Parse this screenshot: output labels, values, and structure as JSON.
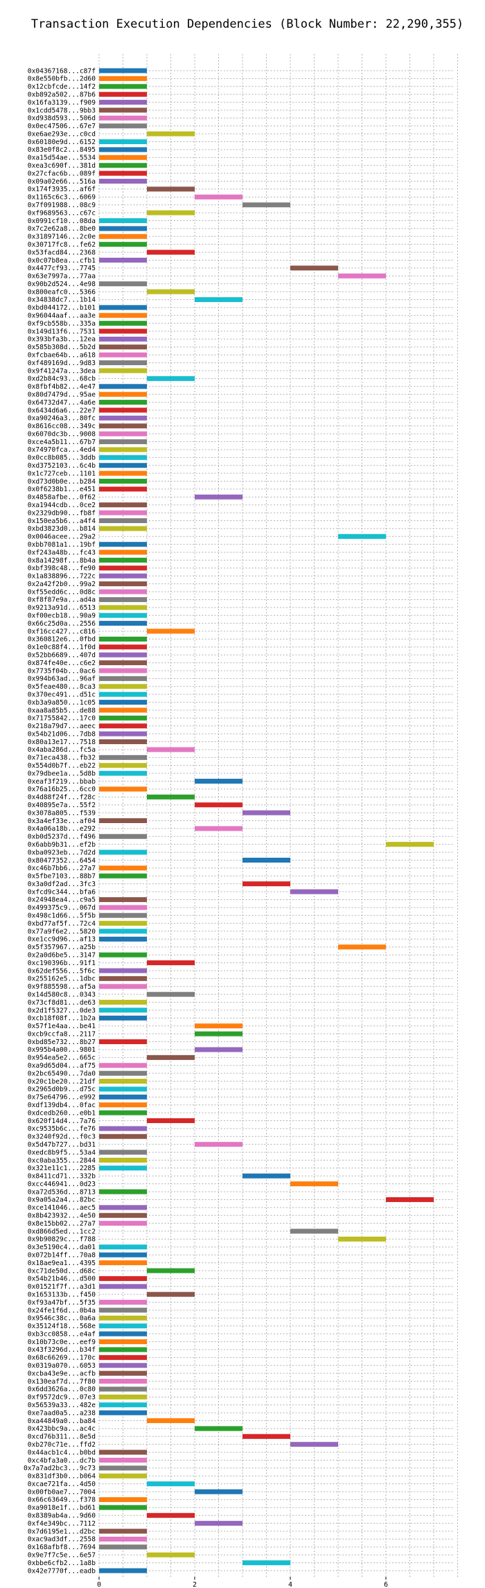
{
  "chart_data": {
    "type": "gantt",
    "title": "Transaction Execution Dependencies (Block Number: 22,290,355)",
    "xlabel": "",
    "ylabel": "",
    "xlim": [
      0,
      7.5
    ],
    "x_ticks": [
      0,
      2,
      4,
      6
    ],
    "grid": true,
    "palette": [
      "#1f77b4",
      "#ff7f0e",
      "#2ca02c",
      "#d62728",
      "#9467bd",
      "#8c564b",
      "#e377c2",
      "#7f7f7f",
      "#bcbd22",
      "#17becf"
    ],
    "tasks": [
      {
        "label": "0x04367168...c87f",
        "start": 0,
        "end": 1
      },
      {
        "label": "0x8e550bfb...2d60",
        "start": 0,
        "end": 1
      },
      {
        "label": "0x12cbfcde...14f2",
        "start": 0,
        "end": 1
      },
      {
        "label": "0xb892a502...87b6",
        "start": 0,
        "end": 1
      },
      {
        "label": "0x16fa3139...f909",
        "start": 0,
        "end": 1
      },
      {
        "label": "0x1cdd5478...9bb3",
        "start": 0,
        "end": 1
      },
      {
        "label": "0xd938d593...506d",
        "start": 0,
        "end": 1
      },
      {
        "label": "0x0ec47506...67e7",
        "start": 0,
        "end": 1
      },
      {
        "label": "0xe6ae293e...c0cd",
        "start": 1,
        "end": 2
      },
      {
        "label": "0x60180e9d...6152",
        "start": 0,
        "end": 1
      },
      {
        "label": "0x83e0f8c2...8495",
        "start": 0,
        "end": 1
      },
      {
        "label": "0xa15d54ae...5534",
        "start": 0,
        "end": 1
      },
      {
        "label": "0xea3c690f...381d",
        "start": 0,
        "end": 1
      },
      {
        "label": "0x27cfac6b...089f",
        "start": 0,
        "end": 1
      },
      {
        "label": "0x09a02e66...516a",
        "start": 0,
        "end": 1
      },
      {
        "label": "0x174f3935...af6f",
        "start": 1,
        "end": 2
      },
      {
        "label": "0x1165c6c3...6069",
        "start": 2,
        "end": 3
      },
      {
        "label": "0x7f091988...08c9",
        "start": 3,
        "end": 4
      },
      {
        "label": "0xf9689563...c67c",
        "start": 1,
        "end": 2
      },
      {
        "label": "0x0991cf10...08da",
        "start": 0,
        "end": 1
      },
      {
        "label": "0x7c2e62a8...8be0",
        "start": 0,
        "end": 1
      },
      {
        "label": "0x31897146...2c0e",
        "start": 0,
        "end": 1
      },
      {
        "label": "0x30717fc8...fe62",
        "start": 0,
        "end": 1
      },
      {
        "label": "0x53facd84...2368",
        "start": 1,
        "end": 2
      },
      {
        "label": "0x0c07b8ea...cfb1",
        "start": 0,
        "end": 1
      },
      {
        "label": "0x4477cf93...7745",
        "start": 4,
        "end": 5
      },
      {
        "label": "0x63e7997a...77aa",
        "start": 5,
        "end": 6
      },
      {
        "label": "0x90b2d524...4e98",
        "start": 0,
        "end": 1
      },
      {
        "label": "0x800eafc0...5366",
        "start": 1,
        "end": 2
      },
      {
        "label": "0x34838dc7...1b14",
        "start": 2,
        "end": 3
      },
      {
        "label": "0xbd044172...b101",
        "start": 0,
        "end": 1
      },
      {
        "label": "0x96044aaf...aa3e",
        "start": 0,
        "end": 1
      },
      {
        "label": "0xf9cb558b...335a",
        "start": 0,
        "end": 1
      },
      {
        "label": "0x149d13f6...7531",
        "start": 0,
        "end": 1
      },
      {
        "label": "0x393bfa3b...12ea",
        "start": 0,
        "end": 1
      },
      {
        "label": "0x585b308d...5b2d",
        "start": 0,
        "end": 1
      },
      {
        "label": "0xfcbae64b...a618",
        "start": 0,
        "end": 1
      },
      {
        "label": "0xf489169d...9d83",
        "start": 0,
        "end": 1
      },
      {
        "label": "0x9f41247a...3dea",
        "start": 0,
        "end": 1
      },
      {
        "label": "0xd2b84c93...68cb",
        "start": 1,
        "end": 2
      },
      {
        "label": "0x8fbf4b82...4e47",
        "start": 0,
        "end": 1
      },
      {
        "label": "0x80d7479d...95ae",
        "start": 0,
        "end": 1
      },
      {
        "label": "0x64732d47...4a6e",
        "start": 0,
        "end": 1
      },
      {
        "label": "0x6434d6a6...22e7",
        "start": 0,
        "end": 1
      },
      {
        "label": "0xa90246a3...80fc",
        "start": 0,
        "end": 1
      },
      {
        "label": "0x8616cc08...349c",
        "start": 0,
        "end": 1
      },
      {
        "label": "0x6070dc3b...9008",
        "start": 0,
        "end": 1
      },
      {
        "label": "0xce4a5b11...67b7",
        "start": 0,
        "end": 1
      },
      {
        "label": "0x74970fca...4ed4",
        "start": 0,
        "end": 1
      },
      {
        "label": "0x0cc8b085...3ddb",
        "start": 0,
        "end": 1
      },
      {
        "label": "0xd3752103...6c4b",
        "start": 0,
        "end": 1
      },
      {
        "label": "0x1c727ceb...1101",
        "start": 0,
        "end": 1
      },
      {
        "label": "0xd73d0b0e...b284",
        "start": 0,
        "end": 1
      },
      {
        "label": "0x0f6238b1...e451",
        "start": 0,
        "end": 1
      },
      {
        "label": "0x4858afbe...0f62",
        "start": 2,
        "end": 3
      },
      {
        "label": "0xa1944cdb...0ce2",
        "start": 0,
        "end": 1
      },
      {
        "label": "0x2329db90...fb8f",
        "start": 0,
        "end": 1
      },
      {
        "label": "0x150ea5b6...a4f4",
        "start": 0,
        "end": 1
      },
      {
        "label": "0xbd3823d0...b814",
        "start": 0,
        "end": 1
      },
      {
        "label": "0x0046acee...29a2",
        "start": 5,
        "end": 6
      },
      {
        "label": "0xbb7081a1...19bf",
        "start": 0,
        "end": 1
      },
      {
        "label": "0xf243a48b...fc43",
        "start": 0,
        "end": 1
      },
      {
        "label": "0x8a14298f...8b4a",
        "start": 0,
        "end": 1
      },
      {
        "label": "0xbf398c48...fe90",
        "start": 0,
        "end": 1
      },
      {
        "label": "0x1a838896...722c",
        "start": 0,
        "end": 1
      },
      {
        "label": "0x2a42f2b0...99a2",
        "start": 0,
        "end": 1
      },
      {
        "label": "0xf55edd6c...0d8c",
        "start": 0,
        "end": 1
      },
      {
        "label": "0xf8f87e9a...ad4a",
        "start": 0,
        "end": 1
      },
      {
        "label": "0x9213a91d...6513",
        "start": 0,
        "end": 1
      },
      {
        "label": "0xf00ecb18...90a9",
        "start": 0,
        "end": 1
      },
      {
        "label": "0x66c25d0a...2556",
        "start": 0,
        "end": 1
      },
      {
        "label": "0xf16cc427...c816",
        "start": 1,
        "end": 2
      },
      {
        "label": "0x360812e6...0fbd",
        "start": 0,
        "end": 1
      },
      {
        "label": "0x1e0c88f4...1f0d",
        "start": 0,
        "end": 1
      },
      {
        "label": "0x52bb6689...407d",
        "start": 0,
        "end": 1
      },
      {
        "label": "0x874fe40e...c6e2",
        "start": 0,
        "end": 1
      },
      {
        "label": "0x7735f04b...0ac6",
        "start": 0,
        "end": 1
      },
      {
        "label": "0x994b63ad...96af",
        "start": 0,
        "end": 1
      },
      {
        "label": "0x5feae480...8ca3",
        "start": 0,
        "end": 1
      },
      {
        "label": "0x370ec491...d51c",
        "start": 0,
        "end": 1
      },
      {
        "label": "0xb3a9a850...1c05",
        "start": 0,
        "end": 1
      },
      {
        "label": "0xaa8a85b5...de88",
        "start": 0,
        "end": 1
      },
      {
        "label": "0x71755842...17c0",
        "start": 0,
        "end": 1
      },
      {
        "label": "0x218a79d7...aeec",
        "start": 0,
        "end": 1
      },
      {
        "label": "0x54b21d06...7db8",
        "start": 0,
        "end": 1
      },
      {
        "label": "0x80a13e17...7518",
        "start": 0,
        "end": 1
      },
      {
        "label": "0x4aba286d...fc5a",
        "start": 1,
        "end": 2
      },
      {
        "label": "0x71eca438...fb32",
        "start": 0,
        "end": 1
      },
      {
        "label": "0x554d0b7f...eb22",
        "start": 0,
        "end": 1
      },
      {
        "label": "0x79dbee1a...5d8b",
        "start": 0,
        "end": 1
      },
      {
        "label": "0xeaf3f219...bbab",
        "start": 2,
        "end": 3
      },
      {
        "label": "0x76a16b25...6cc0",
        "start": 0,
        "end": 1
      },
      {
        "label": "0x4d88f24f...f28c",
        "start": 1,
        "end": 2
      },
      {
        "label": "0x40895e7a...55f2",
        "start": 2,
        "end": 3
      },
      {
        "label": "0x3078a805...f539",
        "start": 3,
        "end": 4
      },
      {
        "label": "0x3a4ef33e...af04",
        "start": 0,
        "end": 1
      },
      {
        "label": "0x4a06a18b...e292",
        "start": 2,
        "end": 3
      },
      {
        "label": "0xb0d5237d...f496",
        "start": 0,
        "end": 1
      },
      {
        "label": "0x6abb9b31...ef2b",
        "start": 6,
        "end": 7
      },
      {
        "label": "0xba0923eb...7d2d",
        "start": 0,
        "end": 1
      },
      {
        "label": "0x80477352...6454",
        "start": 3,
        "end": 4
      },
      {
        "label": "0xc46b7bb6...27a7",
        "start": 0,
        "end": 1
      },
      {
        "label": "0x5fbe7103...88b7",
        "start": 0,
        "end": 1
      },
      {
        "label": "0x3a0df2ad...3fc3",
        "start": 3,
        "end": 4
      },
      {
        "label": "0xfcd9c344...bfa6",
        "start": 4,
        "end": 5
      },
      {
        "label": "0x24948ea4...c9a5",
        "start": 0,
        "end": 1
      },
      {
        "label": "0x499375c9...067d",
        "start": 0,
        "end": 1
      },
      {
        "label": "0x498c1d66...5f5b",
        "start": 0,
        "end": 1
      },
      {
        "label": "0xbd77af5f...72c4",
        "start": 0,
        "end": 1
      },
      {
        "label": "0x77a9f6e2...5820",
        "start": 0,
        "end": 1
      },
      {
        "label": "0xe1cc9d96...af13",
        "start": 0,
        "end": 1
      },
      {
        "label": "0x5f357967...a25b",
        "start": 5,
        "end": 6
      },
      {
        "label": "0x2a0d6be5...3147",
        "start": 0,
        "end": 1
      },
      {
        "label": "0xc190396b...91f1",
        "start": 1,
        "end": 2
      },
      {
        "label": "0x62def556...5f6c",
        "start": 0,
        "end": 1
      },
      {
        "label": "0x255162e5...1dbc",
        "start": 0,
        "end": 1
      },
      {
        "label": "0x9f885598...af5a",
        "start": 0,
        "end": 1
      },
      {
        "label": "0x14d580c8...0343",
        "start": 1,
        "end": 2
      },
      {
        "label": "0x73cf8d81...de63",
        "start": 0,
        "end": 1
      },
      {
        "label": "0x2d1f5327...0de3",
        "start": 0,
        "end": 1
      },
      {
        "label": "0xcb18f08f...1b2a",
        "start": 0,
        "end": 1
      },
      {
        "label": "0x57f1e4aa...be41",
        "start": 2,
        "end": 3
      },
      {
        "label": "0xcb9ccfa8...2117",
        "start": 2,
        "end": 3
      },
      {
        "label": "0xbd85e732...8b27",
        "start": 0,
        "end": 1
      },
      {
        "label": "0x995b4a00...9801",
        "start": 2,
        "end": 3
      },
      {
        "label": "0x954ea5e2...665c",
        "start": 1,
        "end": 2
      },
      {
        "label": "0xa9d65d04...af75",
        "start": 0,
        "end": 1
      },
      {
        "label": "0x2bc65490...7da0",
        "start": 0,
        "end": 1
      },
      {
        "label": "0x20c1be20...21df",
        "start": 0,
        "end": 1
      },
      {
        "label": "0x2965d0b9...d75c",
        "start": 0,
        "end": 1
      },
      {
        "label": "0x75e64796...e992",
        "start": 0,
        "end": 1
      },
      {
        "label": "0xdf139db4...0fac",
        "start": 0,
        "end": 1
      },
      {
        "label": "0xdcedb260...e0b1",
        "start": 0,
        "end": 1
      },
      {
        "label": "0x620f14d4...7a76",
        "start": 1,
        "end": 2
      },
      {
        "label": "0xc9535b6c...fe76",
        "start": 0,
        "end": 1
      },
      {
        "label": "0x3240f92d...f0c3",
        "start": 0,
        "end": 1
      },
      {
        "label": "0x5d47b727...bd31",
        "start": 2,
        "end": 3
      },
      {
        "label": "0xedc8b9f5...53a4",
        "start": 0,
        "end": 1
      },
      {
        "label": "0xc0aba355...2844",
        "start": 0,
        "end": 1
      },
      {
        "label": "0x321e11c1...2285",
        "start": 0,
        "end": 1
      },
      {
        "label": "0x8411cd71...332b",
        "start": 3,
        "end": 4
      },
      {
        "label": "0xcc446941...0d23",
        "start": 4,
        "end": 5
      },
      {
        "label": "0xa72d536d...8713",
        "start": 0,
        "end": 1
      },
      {
        "label": "0x9a05a2a4...82bc",
        "start": 6,
        "end": 7
      },
      {
        "label": "0xce141046...aec5",
        "start": 0,
        "end": 1
      },
      {
        "label": "0x8b423932...4e50",
        "start": 0,
        "end": 1
      },
      {
        "label": "0x8e15bb02...27a7",
        "start": 0,
        "end": 1
      },
      {
        "label": "0xd866d5ed...1cc2",
        "start": 4,
        "end": 5
      },
      {
        "label": "0x9b90829c...f788",
        "start": 5,
        "end": 6
      },
      {
        "label": "0x3e5190c4...da01",
        "start": 0,
        "end": 1
      },
      {
        "label": "0x072b14ff...70a8",
        "start": 0,
        "end": 1
      },
      {
        "label": "0x18ae9ea1...4395",
        "start": 0,
        "end": 1
      },
      {
        "label": "0xc71de50d...d68c",
        "start": 1,
        "end": 2
      },
      {
        "label": "0x54b21b46...d500",
        "start": 0,
        "end": 1
      },
      {
        "label": "0x01521f7f...a3d1",
        "start": 0,
        "end": 1
      },
      {
        "label": "0x1653133b...f450",
        "start": 1,
        "end": 2
      },
      {
        "label": "0xf93a47bf...5f35",
        "start": 0,
        "end": 1
      },
      {
        "label": "0x24fe1f6d...0b4a",
        "start": 0,
        "end": 1
      },
      {
        "label": "0x9546c38c...0a6a",
        "start": 0,
        "end": 1
      },
      {
        "label": "0x35124f18...568e",
        "start": 0,
        "end": 1
      },
      {
        "label": "0xb3cc0858...e4af",
        "start": 0,
        "end": 1
      },
      {
        "label": "0x10b73c0e...eef9",
        "start": 0,
        "end": 1
      },
      {
        "label": "0x43f3296d...b34f",
        "start": 0,
        "end": 1
      },
      {
        "label": "0x68c66269...170c",
        "start": 0,
        "end": 1
      },
      {
        "label": "0x0319a070...6053",
        "start": 0,
        "end": 1
      },
      {
        "label": "0xcba43e9e...acfb",
        "start": 0,
        "end": 1
      },
      {
        "label": "0x130eaf7d...7f80",
        "start": 0,
        "end": 1
      },
      {
        "label": "0x6dd3626a...0c80",
        "start": 0,
        "end": 1
      },
      {
        "label": "0xf9572dc9...07e3",
        "start": 0,
        "end": 1
      },
      {
        "label": "0x56539a33...482e",
        "start": 0,
        "end": 1
      },
      {
        "label": "0xe7aad0a5...a238",
        "start": 0,
        "end": 1
      },
      {
        "label": "0xa44849a0...ba84",
        "start": 1,
        "end": 2
      },
      {
        "label": "0x423bbc9a...ac4c",
        "start": 2,
        "end": 3
      },
      {
        "label": "0xcd76b311...8e5d",
        "start": 3,
        "end": 4
      },
      {
        "label": "0xb270c71e...ffd2",
        "start": 4,
        "end": 5
      },
      {
        "label": "0x44acb1c4...b0bd",
        "start": 0,
        "end": 1
      },
      {
        "label": "0xc4bfa3a0...dc7b",
        "start": 0,
        "end": 1
      },
      {
        "label": "0x7a7ad2bc3...9c73",
        "start": 0,
        "end": 1
      },
      {
        "label": "0x831df3b0...b064",
        "start": 0,
        "end": 1
      },
      {
        "label": "0xcae721fa...4d50",
        "start": 1,
        "end": 2
      },
      {
        "label": "0x00fb0ae7...7004",
        "start": 2,
        "end": 3
      },
      {
        "label": "0x66c63649...f378",
        "start": 0,
        "end": 1
      },
      {
        "label": "0xa9018e1f...bd61",
        "start": 0,
        "end": 1
      },
      {
        "label": "0x8389ab4a...9d60",
        "start": 1,
        "end": 2
      },
      {
        "label": "0xf4e349bc...7112",
        "start": 2,
        "end": 3
      },
      {
        "label": "0x7d6195e1...d2bc",
        "start": 0,
        "end": 1
      },
      {
        "label": "0xac9ad3df...2558",
        "start": 0,
        "end": 1
      },
      {
        "label": "0x168afbf8...7694",
        "start": 0,
        "end": 1
      },
      {
        "label": "0x9e7f7c5e...6e57",
        "start": 1,
        "end": 2
      },
      {
        "label": "0xbbe6cfb2...1a8b",
        "start": 3,
        "end": 4
      },
      {
        "label": "0x42e7770f...eadb",
        "start": 0,
        "end": 1
      }
    ]
  }
}
